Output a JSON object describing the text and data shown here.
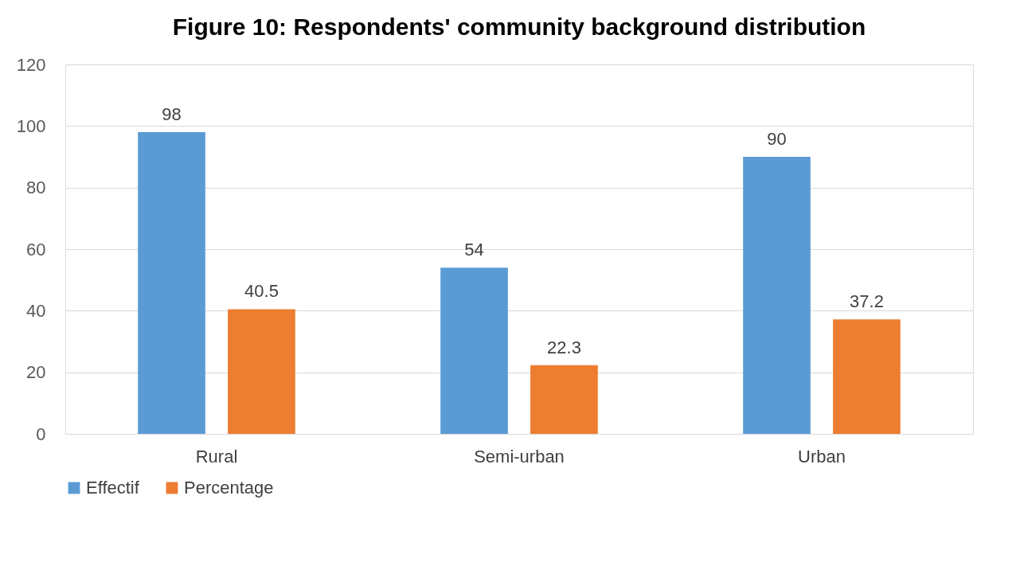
{
  "chart_data": {
    "type": "bar",
    "title": "Figure 10: Respondents' community background distribution",
    "categories": [
      "Rural",
      "Semi-urban",
      "Urban"
    ],
    "series": [
      {
        "name": "Effectif",
        "color": "#5b9bd5",
        "values": [
          98,
          54,
          90
        ]
      },
      {
        "name": "Percentage",
        "color": "#ed7d31",
        "values": [
          40.5,
          22.3,
          37.2
        ]
      }
    ],
    "ylim": [
      0,
      120
    ],
    "yticks": [
      0,
      20,
      40,
      60,
      80,
      100,
      120
    ],
    "grid": "y",
    "legend": "bottom",
    "data_labels": true
  }
}
